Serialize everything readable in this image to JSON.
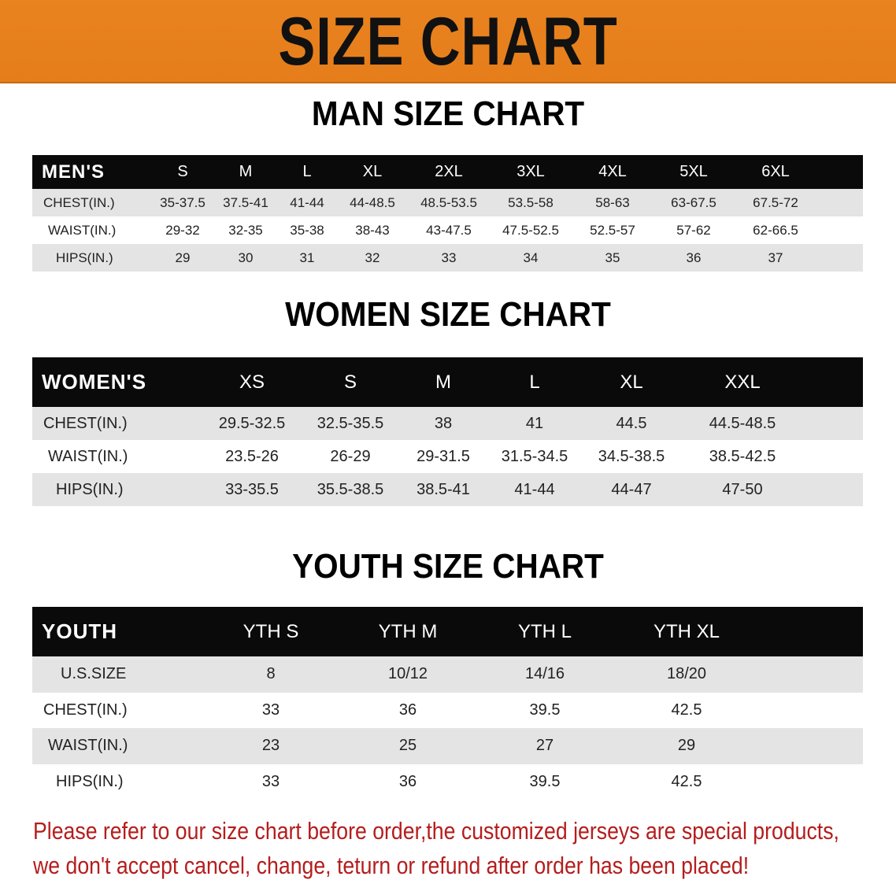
{
  "banner": {
    "title": "SIZE CHART",
    "color": "#e8821e"
  },
  "men": {
    "title": "MAN SIZE CHART",
    "header": [
      "MEN'S",
      "S",
      "M",
      "L",
      "XL",
      "2XL",
      "3XL",
      "4XL",
      "5XL",
      "6XL"
    ],
    "rows": [
      [
        "CHEST(IN.)",
        "35-37.5",
        "37.5-41",
        "41-44",
        "44-48.5",
        "48.5-53.5",
        "53.5-58",
        "58-63",
        "63-67.5",
        "67.5-72"
      ],
      [
        "WAIST(IN.)",
        "29-32",
        "32-35",
        "35-38",
        "38-43",
        "43-47.5",
        "47.5-52.5",
        "52.5-57",
        "57-62",
        "62-66.5"
      ],
      [
        "HIPS(IN.)",
        "29",
        "30",
        "31",
        "32",
        "33",
        "34",
        "35",
        "36",
        "37"
      ]
    ]
  },
  "women": {
    "title": "WOMEN SIZE CHART",
    "header": [
      "WOMEN'S",
      "XS",
      "S",
      "M",
      "L",
      "XL",
      "XXL"
    ],
    "rows": [
      [
        "CHEST(IN.)",
        "29.5-32.5",
        "32.5-35.5",
        "38",
        "41",
        "44.5",
        "44.5-48.5"
      ],
      [
        "WAIST(IN.)",
        "23.5-26",
        "26-29",
        "29-31.5",
        "31.5-34.5",
        "34.5-38.5",
        "38.5-42.5"
      ],
      [
        "HIPS(IN.)",
        "33-35.5",
        "35.5-38.5",
        "38.5-41",
        "41-44",
        "44-47",
        "47-50"
      ]
    ]
  },
  "youth": {
    "title": "YOUTH SIZE CHART",
    "header": [
      "YOUTH",
      "YTH S",
      "YTH M",
      "YTH L",
      "YTH XL"
    ],
    "rows": [
      [
        "U.S.SIZE",
        "8",
        "10/12",
        "14/16",
        "18/20"
      ],
      [
        "CHEST(IN.)",
        "33",
        "36",
        "39.5",
        "42.5"
      ],
      [
        "WAIST(IN.)",
        "23",
        "25",
        "27",
        "29"
      ],
      [
        "HIPS(IN.)",
        "33",
        "36",
        "39.5",
        "42.5"
      ]
    ]
  },
  "footer": {
    "line1": "Please refer to our size chart before order,the customized jerseys are special products,",
    "line2": "we don't accept cancel, change, teturn or refund after order has been placed!",
    "color": "#b51d1d"
  }
}
